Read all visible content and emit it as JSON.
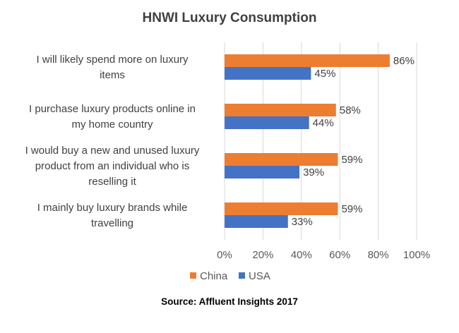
{
  "chart_data": {
    "type": "bar",
    "orientation": "horizontal",
    "title": "HNWI  Luxury Consumption",
    "categories": [
      [
        "I will likely spend more on luxury",
        "items"
      ],
      [
        "I purchase luxury products online in",
        "my home country"
      ],
      [
        "I would buy a new and unused luxury",
        "product from an individual who is",
        "reselling it"
      ],
      [
        "I mainly buy luxury brands while",
        "travelling"
      ]
    ],
    "series": [
      {
        "name": "China",
        "color": "#ED7D31",
        "values": [
          86,
          58,
          59,
          59
        ],
        "labels": [
          "86%",
          "58%",
          "59%",
          "59%"
        ]
      },
      {
        "name": "USA",
        "color": "#4472C4",
        "values": [
          45,
          44,
          39,
          33
        ],
        "labels": [
          "45%",
          "44%",
          "39%",
          "33%"
        ]
      }
    ],
    "xlim": [
      0,
      100
    ],
    "xticks": [
      0,
      20,
      40,
      60,
      80,
      100
    ],
    "xtick_labels": [
      "0%",
      "20%",
      "40%",
      "60%",
      "80%",
      "100%"
    ],
    "xlabel": "",
    "ylabel": "",
    "grid": "vertical",
    "legend_position": "bottom"
  },
  "source": "Source: Affluent Insights 2017"
}
